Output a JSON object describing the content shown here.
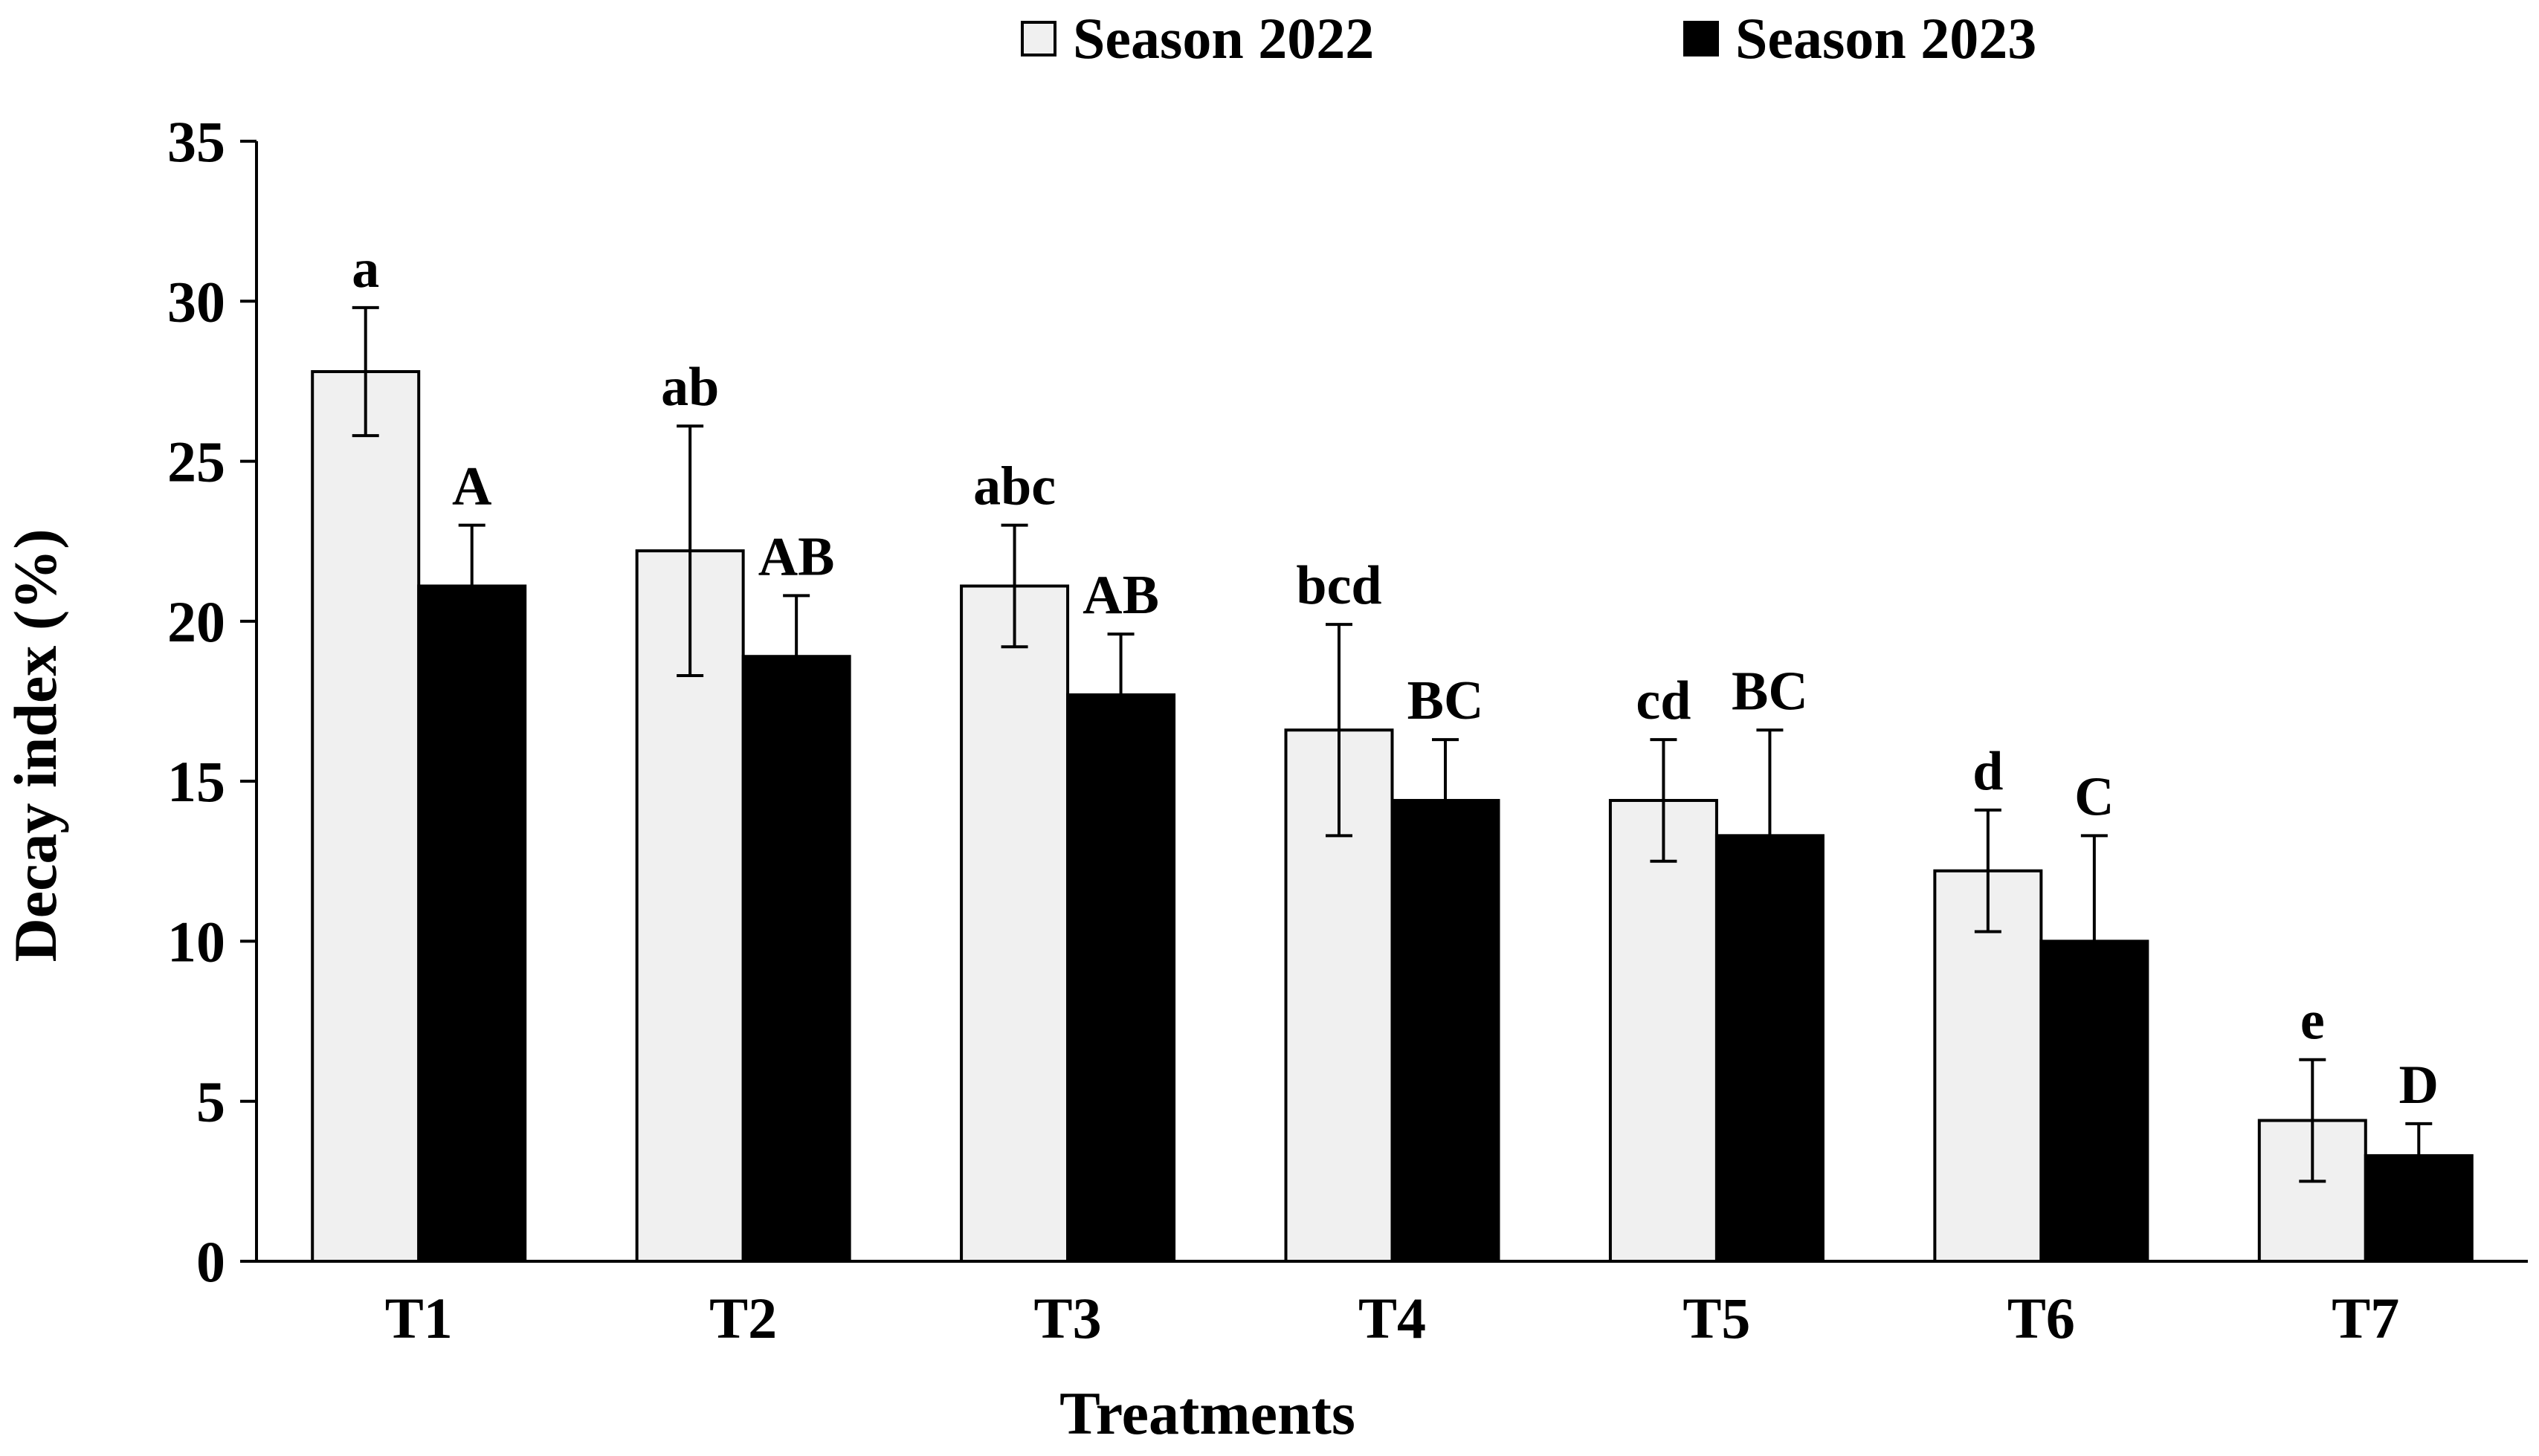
{
  "chart_data": {
    "type": "bar",
    "title": "",
    "xlabel": "Treatments",
    "ylabel": "Decay index (%)",
    "ylim": [
      0,
      35
    ],
    "yticks": [
      0,
      5,
      10,
      15,
      20,
      25,
      30,
      35
    ],
    "grid": false,
    "legend_position": "top",
    "categories": [
      "T1",
      "T2",
      "T3",
      "T4",
      "T5",
      "T6",
      "T7"
    ],
    "series": [
      {
        "name": "Season 2022",
        "color": "#f0f0f0",
        "values": [
          27.8,
          22.2,
          21.1,
          16.6,
          14.4,
          12.2,
          4.4
        ],
        "errors": [
          2.0,
          3.9,
          1.9,
          3.3,
          1.9,
          1.9,
          1.9
        ],
        "labels": [
          "a",
          "ab",
          "abc",
          "bcd",
          "cd",
          "d",
          "e"
        ]
      },
      {
        "name": "Season 2023",
        "color": "#000000",
        "values": [
          21.1,
          18.9,
          17.7,
          14.4,
          13.3,
          10.0,
          3.3
        ],
        "errors": [
          1.9,
          1.9,
          1.9,
          1.9,
          3.3,
          3.3,
          1.0
        ],
        "labels": [
          "A",
          "AB",
          "AB",
          "BC",
          "BC",
          "C",
          "D"
        ]
      }
    ]
  }
}
